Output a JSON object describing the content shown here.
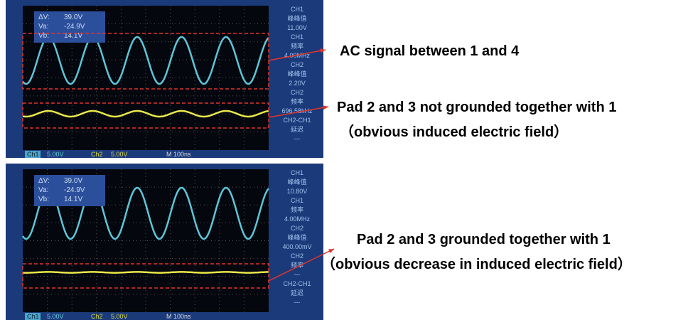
{
  "scopes": [
    {
      "cursor": [
        [
          "ΔV:",
          "39.0V"
        ],
        [
          "Va:",
          "-24.9V"
        ],
        [
          "Vb:",
          "14.1V"
        ]
      ],
      "side": [
        "CH1",
        "峰峰值",
        "11.00V",
        "CH1",
        "频率",
        "4.00MHz",
        "CH2",
        "峰峰值",
        "2.20V",
        "CH2",
        "频率",
        "696.58kHz",
        "CH2-CH1",
        "延迟",
        "---"
      ],
      "bottom": [
        "Ch1",
        "5.00V",
        "Ch2",
        "5.00V",
        "M 100ns"
      ]
    },
    {
      "cursor": [
        [
          "ΔV:",
          "39.0V"
        ],
        [
          "Va:",
          "-24.9V"
        ],
        [
          "Vb:",
          "14.1V"
        ]
      ],
      "side": [
        "CH1",
        "峰峰值",
        "10.80V",
        "CH1",
        "频率",
        "4.00MHz",
        "CH2",
        "峰峰值",
        "400.00mV",
        "CH2",
        "频率",
        "---",
        "CH2-CH1",
        "延迟",
        "---"
      ],
      "bottom": [
        "Ch1",
        "5.00V",
        "Ch2",
        "5.00V",
        "M 100ns"
      ]
    }
  ],
  "annotations": [
    "AC signal between 1 and 4",
    "Pad 2 and 3 not grounded together with 1",
    "（obvious induced electric field）",
    "Pad 2 and 3 grounded together with 1",
    "（obvious decrease in induced electric field）"
  ]
}
